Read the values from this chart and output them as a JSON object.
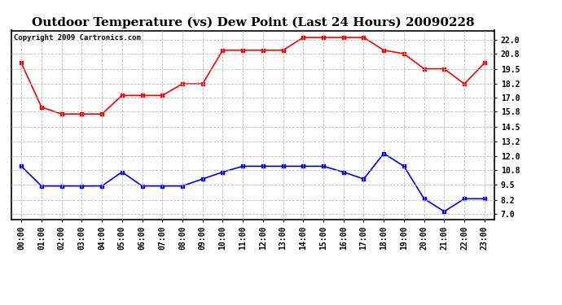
{
  "title": "Outdoor Temperature (vs) Dew Point (Last 24 Hours) 20090228",
  "copyright": "Copyright 2009 Cartronics.com",
  "x_labels": [
    "00:00",
    "01:00",
    "02:00",
    "03:00",
    "04:00",
    "05:00",
    "06:00",
    "07:00",
    "08:00",
    "09:00",
    "10:00",
    "11:00",
    "12:00",
    "13:00",
    "14:00",
    "15:00",
    "16:00",
    "17:00",
    "18:00",
    "19:00",
    "20:00",
    "21:00",
    "22:00",
    "23:00"
  ],
  "temp_values": [
    20.0,
    16.2,
    15.6,
    15.6,
    15.6,
    17.2,
    17.2,
    17.2,
    18.2,
    18.2,
    21.1,
    21.1,
    21.1,
    21.1,
    22.2,
    22.2,
    22.2,
    22.2,
    21.1,
    20.8,
    19.5,
    19.5,
    18.2,
    20.0
  ],
  "dew_values": [
    11.1,
    9.4,
    9.4,
    9.4,
    9.4,
    10.6,
    9.4,
    9.4,
    9.4,
    10.0,
    10.6,
    11.1,
    11.1,
    11.1,
    11.1,
    11.1,
    10.6,
    10.0,
    12.2,
    11.1,
    8.3,
    7.2,
    8.3,
    8.3
  ],
  "temp_color": "#ff0000",
  "dew_color": "#0000ff",
  "bg_color": "#ffffff",
  "grid_color": "#bbbbbb",
  "yticks": [
    7.0,
    8.2,
    9.5,
    10.8,
    12.0,
    13.2,
    14.5,
    15.8,
    17.0,
    18.2,
    19.5,
    20.8,
    22.0
  ],
  "ylim": [
    6.5,
    22.8
  ],
  "title_fontsize": 11,
  "tick_fontsize": 7,
  "copyright_fontsize": 6.5,
  "marker": "s",
  "marker_size": 3,
  "line_width": 1.2
}
